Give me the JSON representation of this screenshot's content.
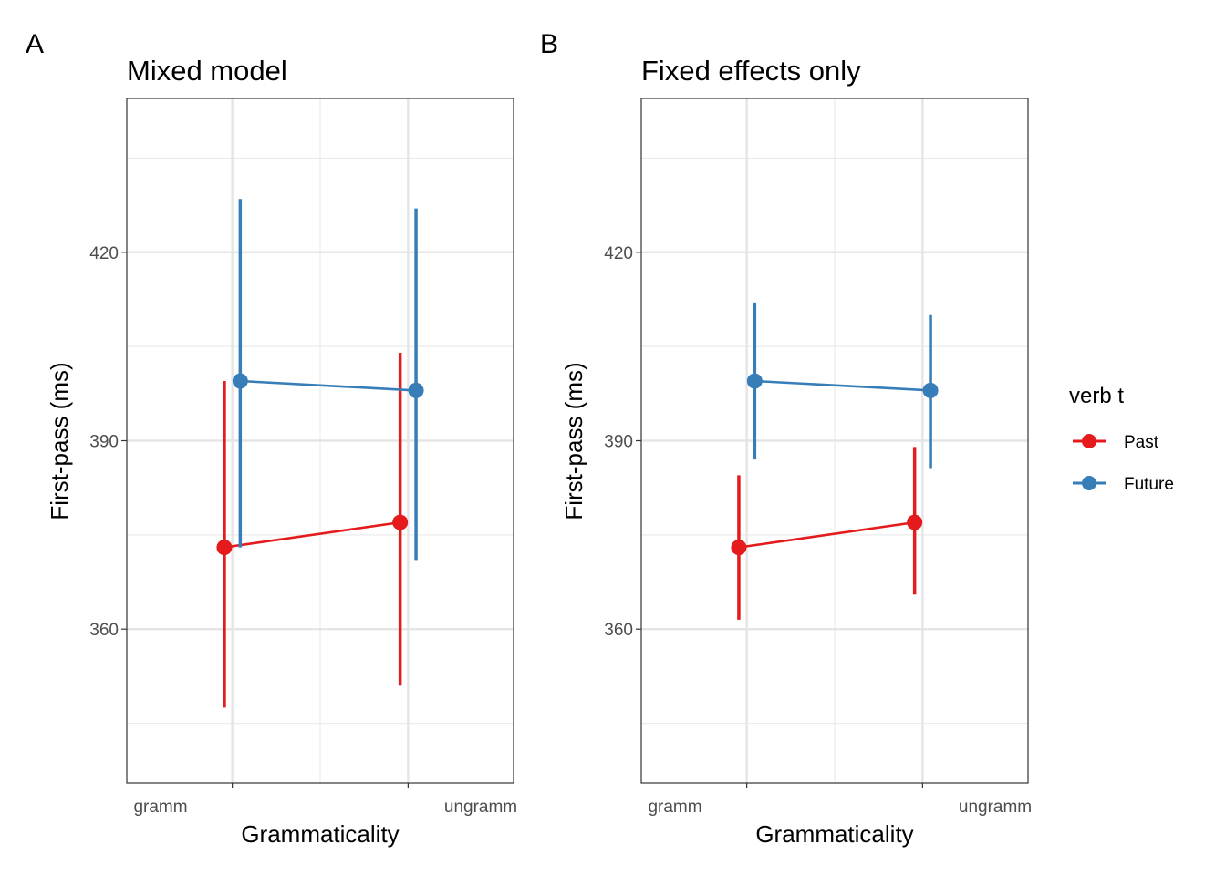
{
  "chart_data": [
    {
      "type": "scatter",
      "tag": "A",
      "title": "Mixed model",
      "xlabel": "Grammaticality",
      "ylabel": "First-pass (ms)",
      "categories": [
        "gramm",
        "ungramm"
      ],
      "yticks": [
        360,
        390,
        420
      ],
      "ylim": [
        335.5,
        444.5
      ],
      "grid": true,
      "series": [
        {
          "name": "Past",
          "color": "#e41a1c",
          "values": [
            373,
            377
          ],
          "lower": [
            347.5,
            351
          ],
          "upper": [
            399.5,
            404
          ]
        },
        {
          "name": "Future",
          "color": "#377eb8",
          "values": [
            399.5,
            398
          ],
          "lower": [
            373,
            371
          ],
          "upper": [
            428.5,
            427
          ]
        }
      ]
    },
    {
      "type": "scatter",
      "tag": "B",
      "title": "Fixed effects only",
      "xlabel": "Grammaticality",
      "ylabel": "First-pass (ms)",
      "categories": [
        "gramm",
        "ungramm"
      ],
      "yticks": [
        360,
        390,
        420
      ],
      "ylim": [
        335.5,
        444.5
      ],
      "grid": true,
      "series": [
        {
          "name": "Past",
          "color": "#e41a1c",
          "values": [
            373,
            377
          ],
          "lower": [
            361.5,
            365.5
          ],
          "upper": [
            384.5,
            389
          ]
        },
        {
          "name": "Future",
          "color": "#377eb8",
          "values": [
            399.5,
            398
          ],
          "lower": [
            387,
            385.5
          ],
          "upper": [
            412,
            410
          ]
        }
      ]
    }
  ],
  "legend": {
    "title": "verb t",
    "position": "right",
    "items": [
      {
        "label": "Past",
        "color": "#e41a1c"
      },
      {
        "label": "Future",
        "color": "#377eb8"
      }
    ]
  }
}
